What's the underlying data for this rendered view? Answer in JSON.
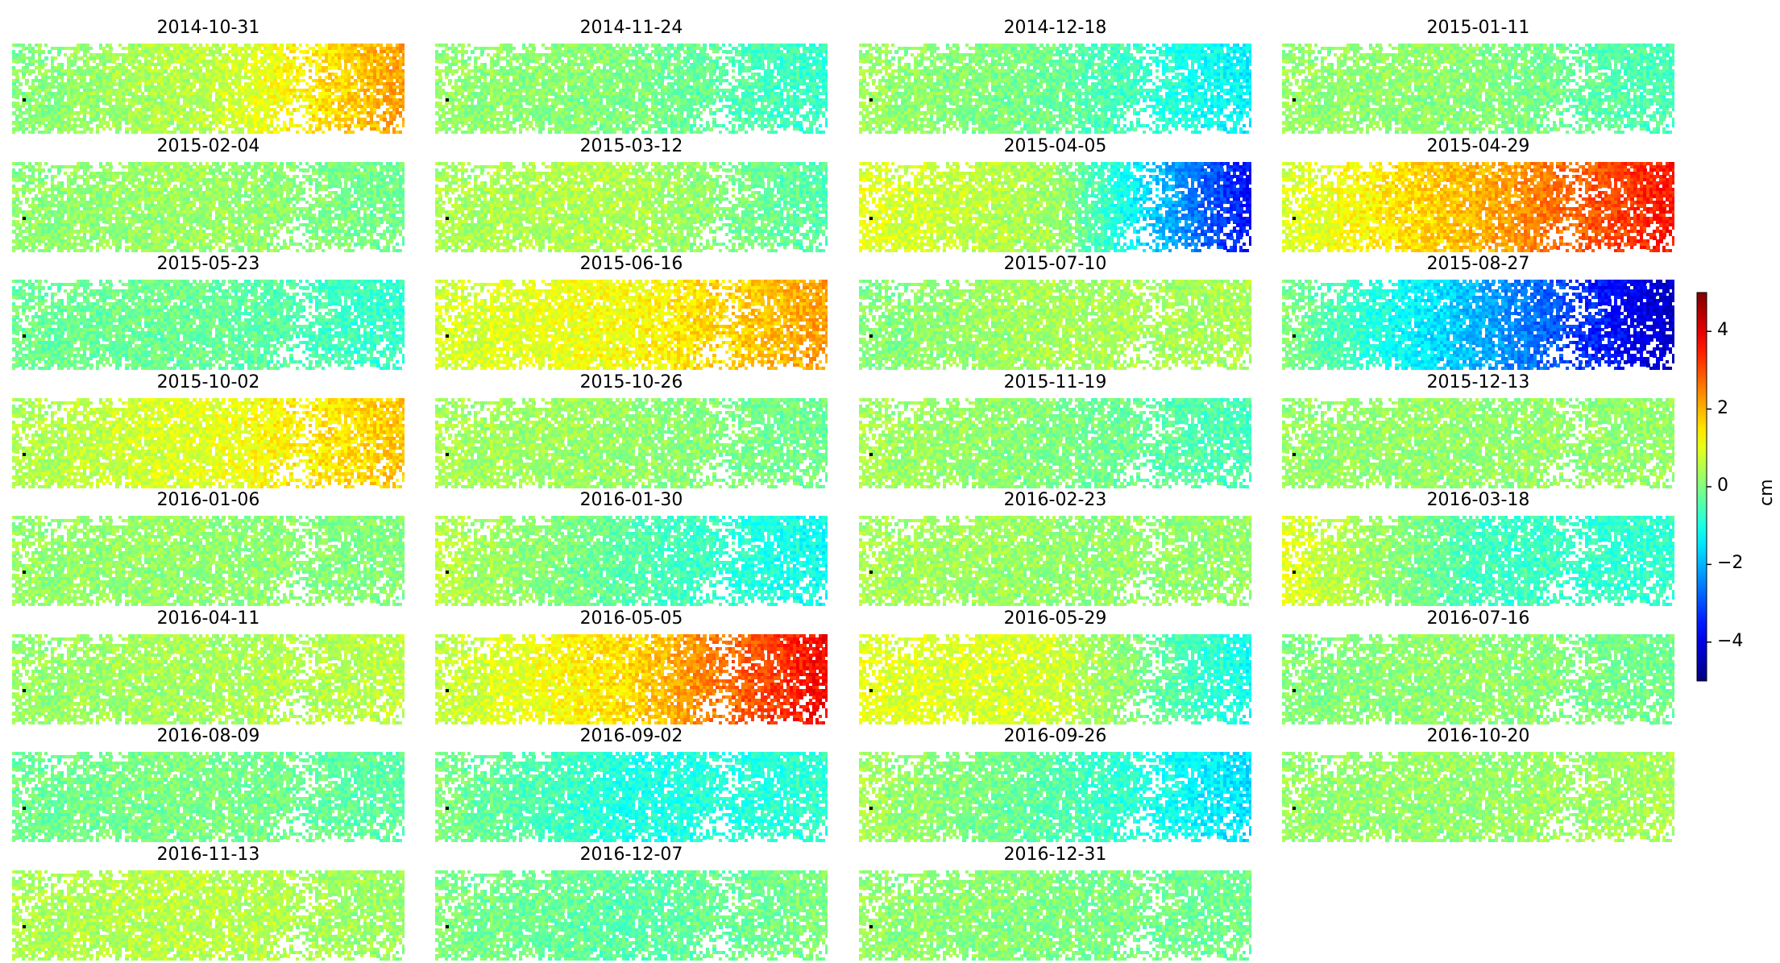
{
  "chart_data": {
    "type": "heatmap",
    "title": "",
    "colormap": "jet",
    "colorbar": {
      "label": "cm",
      "vmin": -5,
      "vmax": 5,
      "ticks": [
        4,
        2,
        0,
        -2,
        -4
      ],
      "tick_labels": [
        "4",
        "2",
        "0",
        "−2",
        "−4"
      ]
    },
    "grid": false,
    "layout": {
      "rows": 8,
      "cols": 4
    },
    "panels": [
      {
        "date": "2014-10-31",
        "west": 0.0,
        "center": 0.6,
        "east": 2.2
      },
      {
        "date": "2014-11-24",
        "west": 0.2,
        "center": 0.0,
        "east": -0.8
      },
      {
        "date": "2014-12-18",
        "west": 0.3,
        "center": -0.2,
        "east": -1.4
      },
      {
        "date": "2015-01-11",
        "west": 0.2,
        "center": 0.1,
        "east": -0.6
      },
      {
        "date": "2015-02-04",
        "west": 0.1,
        "center": 0.3,
        "east": -0.2
      },
      {
        "date": "2015-03-12",
        "west": 0.4,
        "center": 0.5,
        "east": -0.5
      },
      {
        "date": "2015-04-05",
        "west": 1.0,
        "center": 0.3,
        "east": -3.8
      },
      {
        "date": "2015-04-29",
        "west": 0.8,
        "center": 2.0,
        "east": 3.6
      },
      {
        "date": "2015-05-23",
        "west": -0.2,
        "center": -0.2,
        "east": -0.8
      },
      {
        "date": "2015-06-16",
        "west": 0.8,
        "center": 1.2,
        "east": 2.2
      },
      {
        "date": "2015-07-10",
        "west": 0.0,
        "center": 0.4,
        "east": 0.4
      },
      {
        "date": "2015-08-27",
        "west": 0.0,
        "center": -2.0,
        "east": -4.4
      },
      {
        "date": "2015-10-02",
        "west": 0.4,
        "center": 1.0,
        "east": 1.8
      },
      {
        "date": "2015-10-26",
        "west": 0.4,
        "center": 0.2,
        "east": -0.2
      },
      {
        "date": "2015-11-19",
        "west": 0.4,
        "center": 0.0,
        "east": -0.6
      },
      {
        "date": "2015-12-13",
        "west": 0.2,
        "center": 0.2,
        "east": 0.2
      },
      {
        "date": "2016-01-06",
        "west": 0.2,
        "center": 0.2,
        "east": 0.0
      },
      {
        "date": "2016-01-30",
        "west": 0.6,
        "center": -0.4,
        "east": -1.2
      },
      {
        "date": "2016-02-23",
        "west": 0.4,
        "center": 0.2,
        "east": 0.2
      },
      {
        "date": "2016-03-18",
        "west": 1.0,
        "center": -0.6,
        "east": -0.8
      },
      {
        "date": "2016-04-11",
        "west": 0.2,
        "center": 0.4,
        "east": 0.6
      },
      {
        "date": "2016-05-05",
        "west": 0.6,
        "center": 1.6,
        "east": 3.8
      },
      {
        "date": "2016-05-29",
        "west": 1.0,
        "center": 0.8,
        "east": -1.2
      },
      {
        "date": "2016-07-16",
        "west": 0.0,
        "center": 0.2,
        "east": -0.2
      },
      {
        "date": "2016-08-09",
        "west": -0.2,
        "center": 0.0,
        "east": -0.4
      },
      {
        "date": "2016-09-02",
        "west": 0.0,
        "center": -1.0,
        "east": -0.8
      },
      {
        "date": "2016-09-26",
        "west": 0.4,
        "center": -0.4,
        "east": -1.6
      },
      {
        "date": "2016-10-20",
        "west": 0.2,
        "center": 0.2,
        "east": 0.4
      },
      {
        "date": "2016-11-13",
        "west": 0.4,
        "center": 0.6,
        "east": 0.2
      },
      {
        "date": "2016-12-07",
        "west": 0.0,
        "center": -0.4,
        "east": 0.0
      },
      {
        "date": "2016-12-31",
        "west": 0.2,
        "center": 0.0,
        "east": -0.2
      }
    ]
  }
}
